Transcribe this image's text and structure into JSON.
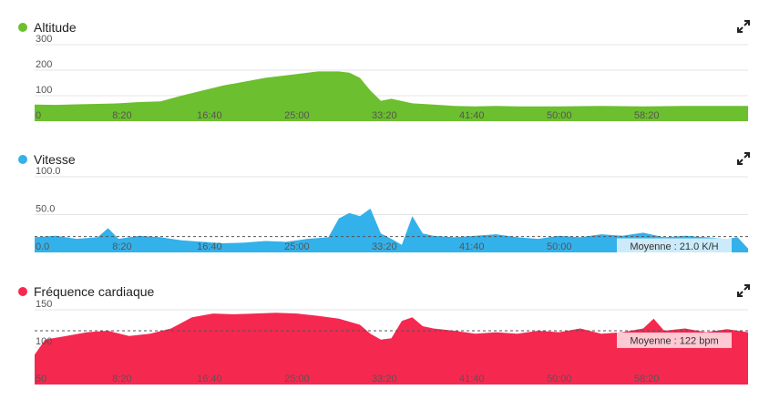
{
  "chart_data": [
    {
      "id": "altitude",
      "type": "area",
      "title": "Altitude",
      "color": "#6cbf2e",
      "yticks": [
        0,
        100,
        200,
        300
      ],
      "ytick_labels": [
        "0",
        "100",
        "200",
        "300"
      ],
      "ylim": [
        0,
        300
      ],
      "xticks": [
        "8:20",
        "16:40",
        "25:00",
        "33:20",
        "41:40",
        "50:00",
        "58:20"
      ],
      "x_minutes": [
        0,
        2,
        4,
        6,
        8,
        10,
        12,
        14,
        16,
        18,
        20,
        22,
        24,
        25,
        27,
        29,
        30,
        31,
        32,
        33,
        34,
        36,
        38,
        40,
        42,
        44,
        46,
        50,
        54,
        58,
        62,
        66,
        68
      ],
      "values": [
        65,
        64,
        66,
        68,
        70,
        75,
        78,
        100,
        120,
        140,
        155,
        170,
        180,
        185,
        195,
        195,
        190,
        170,
        120,
        80,
        88,
        70,
        65,
        60,
        58,
        60,
        58,
        58,
        60,
        58,
        60,
        60,
        60
      ],
      "average": null
    },
    {
      "id": "vitesse",
      "type": "area",
      "title": "Vitesse",
      "color": "#33b1ea",
      "yticks": [
        0,
        50,
        100
      ],
      "ytick_labels": [
        "0.0",
        "50.0",
        "100.0"
      ],
      "ylim": [
        0,
        100
      ],
      "xticks": [
        "8:20",
        "16:40",
        "25:00",
        "33:20",
        "41:40",
        "50:00",
        "58:20"
      ],
      "x_minutes": [
        0,
        2,
        4,
        6,
        7,
        8,
        10,
        12,
        14,
        16,
        18,
        20,
        22,
        24,
        26,
        28,
        29,
        30,
        31,
        32,
        33,
        34,
        35,
        36,
        37,
        38,
        40,
        42,
        44,
        46,
        48,
        50,
        52,
        54,
        56,
        58,
        60,
        62,
        64,
        66,
        67,
        68
      ],
      "values": [
        20,
        22,
        18,
        20,
        32,
        18,
        22,
        20,
        16,
        14,
        12,
        13,
        15,
        14,
        18,
        20,
        45,
        52,
        48,
        58,
        25,
        18,
        10,
        48,
        25,
        22,
        20,
        22,
        24,
        20,
        18,
        22,
        20,
        24,
        22,
        26,
        20,
        22,
        20,
        18,
        20,
        5
      ],
      "average": 21.0,
      "average_label": "Moyenne : 21.0 K/H"
    },
    {
      "id": "frequence",
      "type": "area",
      "title": "Fréquence cardiaque",
      "color": "#f52850",
      "yticks": [
        50,
        100,
        150
      ],
      "ytick_labels": [
        "50",
        "100",
        "150"
      ],
      "ylim": [
        50,
        150
      ],
      "xticks": [
        "8:20",
        "16:40",
        "25:00",
        "33:20",
        "41:40",
        "50:00",
        "58:20"
      ],
      "x_minutes": [
        0,
        1,
        3,
        5,
        7,
        9,
        11,
        13,
        15,
        17,
        19,
        21,
        23,
        25,
        27,
        29,
        31,
        32,
        33,
        34,
        35,
        36,
        37,
        38,
        40,
        42,
        44,
        46,
        48,
        50,
        52,
        54,
        56,
        58,
        59,
        60,
        62,
        64,
        66,
        68
      ],
      "values": [
        90,
        110,
        115,
        120,
        122,
        115,
        118,
        125,
        140,
        145,
        144,
        145,
        146,
        145,
        142,
        138,
        130,
        118,
        110,
        112,
        135,
        140,
        128,
        125,
        122,
        118,
        120,
        118,
        122,
        120,
        125,
        118,
        120,
        125,
        138,
        122,
        125,
        120,
        124,
        120
      ],
      "average": 122,
      "average_label": "Moyenne : 122 bpm"
    }
  ]
}
